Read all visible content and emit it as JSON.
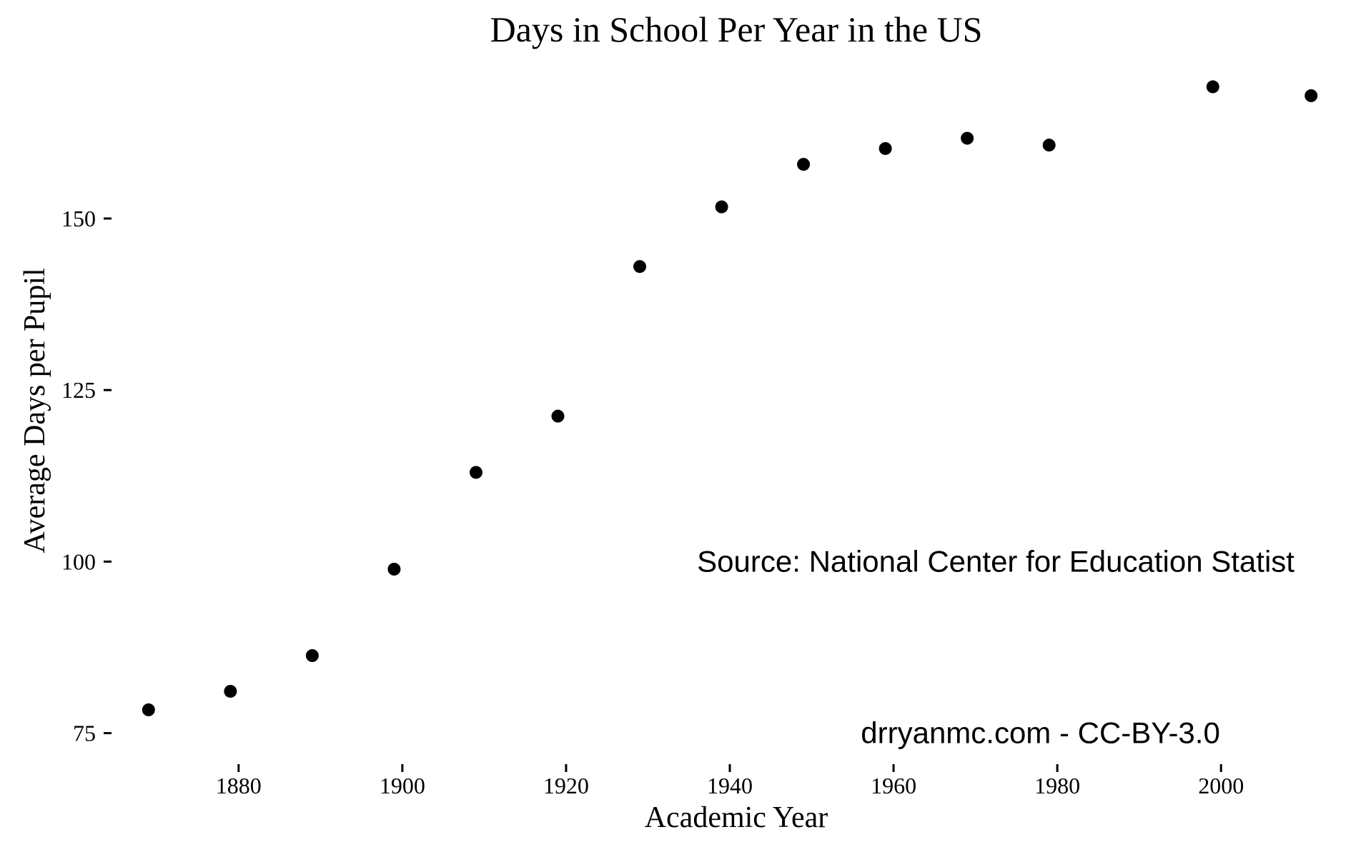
{
  "chart_data": {
    "type": "scatter",
    "title": "Days in School Per Year in the US",
    "xlabel": "Academic Year",
    "ylabel": "Average Days per Pupil",
    "x": [
      1869,
      1879,
      1889,
      1899,
      1909,
      1919,
      1929,
      1939,
      1949,
      1959,
      1969,
      1979,
      1999,
      2011
    ],
    "y": [
      78.4,
      81.1,
      86.3,
      98.9,
      113.0,
      121.2,
      143.0,
      151.7,
      157.9,
      160.2,
      161.7,
      160.7,
      169.2,
      167.9
    ],
    "xlim": [
      1865,
      2015
    ],
    "ylim": [
      71,
      173
    ],
    "x_ticks": [
      1880,
      1900,
      1920,
      1940,
      1960,
      1980,
      2000
    ],
    "y_ticks": [
      75,
      100,
      125,
      150
    ],
    "grid": false,
    "point_color": "#000000",
    "annotations": [
      {
        "text": "Source: National Center for Education Statist",
        "x": 1936,
        "y": 100
      },
      {
        "text": "drryanmc.com - CC-BY-3.0",
        "x": 1956,
        "y": 75
      }
    ]
  }
}
